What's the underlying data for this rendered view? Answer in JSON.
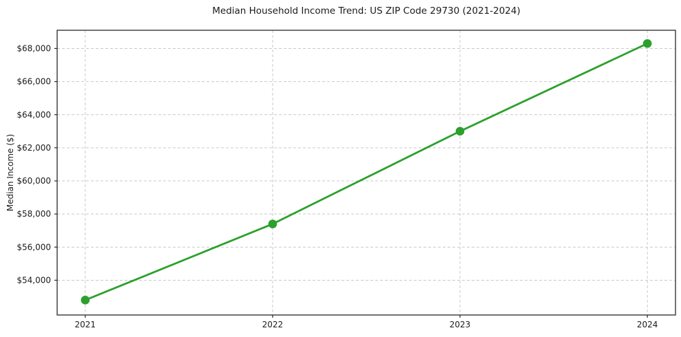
{
  "chart_data": {
    "type": "line",
    "title": "Median Household Income Trend: US ZIP Code 29730 (2021-2024)",
    "xlabel": "",
    "ylabel": "Median Income ($)",
    "x": [
      2021,
      2022,
      2023,
      2024
    ],
    "x_tick_labels": [
      "2021",
      "2022",
      "2023",
      "2024"
    ],
    "values": [
      52800,
      57400,
      63000,
      68300
    ],
    "y_ticks": [
      54000,
      56000,
      58000,
      60000,
      62000,
      64000,
      66000,
      68000
    ],
    "y_tick_labels": [
      "$54,000",
      "$56,000",
      "$58,000",
      "$60,000",
      "$62,000",
      "$64,000",
      "$66,000",
      "$68,000"
    ],
    "xlim": [
      2020.85,
      2024.15
    ],
    "ylim": [
      51900,
      69100
    ],
    "grid": true,
    "legend": false,
    "line_color": "#2ca02c",
    "marker": "circle",
    "grid_color": "#c9c9c9",
    "background": "#ffffff"
  }
}
